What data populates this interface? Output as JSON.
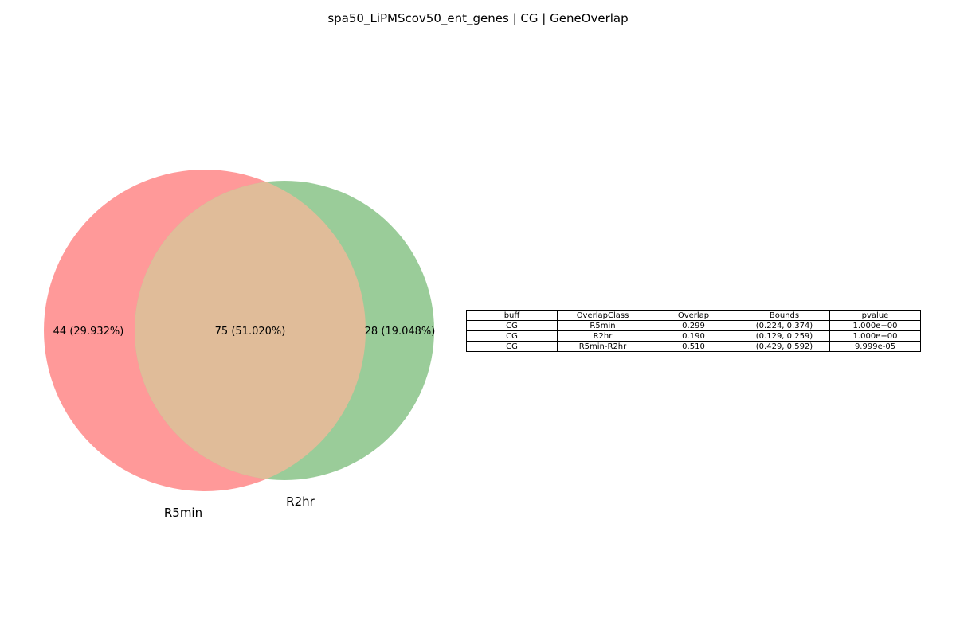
{
  "title": "spa50_LiPMScov50_ent_genes | CG | GeneOverlap",
  "chart_data": [
    {
      "type": "venn",
      "sets": [
        {
          "name": "R5min",
          "color": "#ff9999"
        },
        {
          "name": "R2hr",
          "color": "#9acc99"
        }
      ],
      "overlap_color": "#e0bc99",
      "regions": {
        "R5min_only": {
          "count": 44,
          "label": "44 (29.932%)"
        },
        "intersection": {
          "count": 75,
          "label": "75 (51.020%)"
        },
        "R2hr_only": {
          "count": 28,
          "label": "28 (19.048%)"
        }
      }
    },
    {
      "type": "table",
      "columns": [
        "buff",
        "OverlapClass",
        "Overlap",
        "Bounds",
        "pvalue"
      ],
      "rows": [
        [
          "CG",
          "R5min",
          "0.299",
          "(0.224, 0.374)",
          "1.000e+00"
        ],
        [
          "CG",
          "R2hr",
          "0.190",
          "(0.129, 0.259)",
          "1.000e+00"
        ],
        [
          "CG",
          "R5min-R2hr",
          "0.510",
          "(0.429, 0.592)",
          "9.999e-05"
        ]
      ]
    }
  ]
}
